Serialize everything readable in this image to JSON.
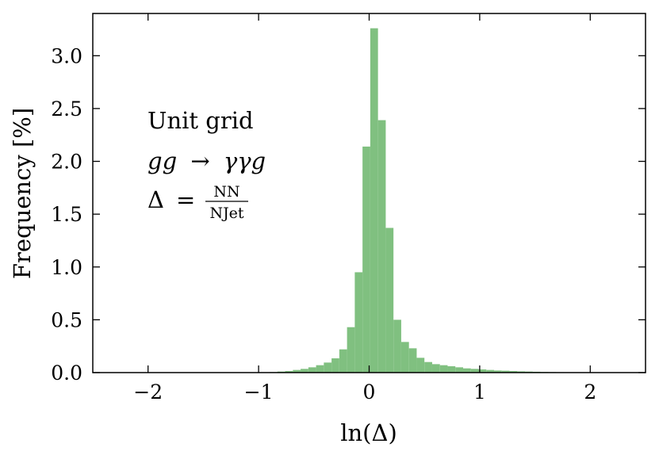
{
  "chart_data": {
    "type": "bar",
    "xlabel": "ln(Δ)",
    "ylabel": "Frequency [%]",
    "xlim": [
      -2.5,
      2.5
    ],
    "ylim": [
      0,
      3.4
    ],
    "xticks": [
      -2,
      -1,
      0,
      1,
      2
    ],
    "xtick_labels": [
      "−2",
      "−1",
      "0",
      "1",
      "2"
    ],
    "yticks": [
      0.0,
      0.5,
      1.0,
      1.5,
      2.0,
      2.5,
      3.0
    ],
    "ytick_labels": [
      "0.0",
      "0.5",
      "1.0",
      "1.5",
      "2.0",
      "2.5",
      "3.0"
    ],
    "bar_color": "#80c080",
    "annotations": {
      "line1": "Unit grid",
      "line2_left": "gg",
      "line2_arrow": "→",
      "line2_right": "γγg",
      "line3_delta": "Δ",
      "line3_eq": "=",
      "line3_num": "NN",
      "line3_den": "NJet"
    },
    "bins": {
      "x_left": [
        -0.9,
        -0.83,
        -0.76,
        -0.69,
        -0.62,
        -0.55,
        -0.48,
        -0.41,
        -0.34,
        -0.27,
        -0.2,
        -0.13,
        -0.06,
        0.01,
        0.08,
        0.15,
        0.22,
        0.29,
        0.36,
        0.43,
        0.5,
        0.57,
        0.64,
        0.71,
        0.78,
        0.85,
        0.92,
        0.99,
        1.06,
        1.13,
        1.2,
        1.27,
        1.34,
        1.41,
        1.48,
        1.55,
        1.62,
        1.69
      ],
      "width": 0.07,
      "values": [
        0.005,
        0.01,
        0.015,
        0.025,
        0.035,
        0.05,
        0.07,
        0.095,
        0.135,
        0.22,
        0.43,
        0.95,
        2.14,
        3.26,
        2.39,
        1.37,
        0.5,
        0.29,
        0.23,
        0.14,
        0.1,
        0.08,
        0.07,
        0.06,
        0.05,
        0.04,
        0.035,
        0.03,
        0.025,
        0.02,
        0.018,
        0.015,
        0.012,
        0.01,
        0.008,
        0.006,
        0.005,
        0.004
      ]
    }
  }
}
